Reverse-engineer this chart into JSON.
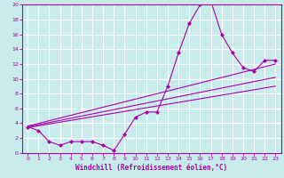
{
  "xlabel": "Windchill (Refroidissement éolien,°C)",
  "bg_color": "#c8ecec",
  "line_color": "#aa00aa",
  "grid_color": "#ffffff",
  "grid_minor_color": "#daf0f0",
  "xlim": [
    -0.5,
    23.5
  ],
  "ylim": [
    0,
    20
  ],
  "xticks": [
    0,
    1,
    2,
    3,
    4,
    5,
    6,
    7,
    8,
    9,
    10,
    11,
    12,
    13,
    14,
    15,
    16,
    17,
    18,
    19,
    20,
    21,
    22,
    23
  ],
  "yticks": [
    0,
    2,
    4,
    6,
    8,
    10,
    12,
    14,
    16,
    18,
    20
  ],
  "curve_x": [
    0,
    1,
    2,
    3,
    4,
    5,
    6,
    7,
    8,
    9,
    10,
    11,
    12,
    13,
    14,
    15,
    16,
    17,
    18,
    19,
    20,
    21,
    22,
    23
  ],
  "curve_y": [
    3.5,
    3.0,
    1.5,
    1.0,
    1.5,
    1.5,
    1.5,
    1.0,
    0.3,
    2.5,
    4.8,
    5.5,
    5.5,
    9.0,
    13.5,
    17.5,
    20.0,
    20.5,
    16.0,
    13.5,
    11.5,
    11.0,
    12.5,
    12.5
  ],
  "line1_x": [
    0,
    23
  ],
  "line1_y": [
    3.4,
    9.0
  ],
  "line2_x": [
    0,
    23
  ],
  "line2_y": [
    3.5,
    10.2
  ],
  "line3_x": [
    0,
    23
  ],
  "line3_y": [
    3.6,
    12.0
  ],
  "xlabel_fontsize": 5.5,
  "tick_fontsize": 4.5
}
